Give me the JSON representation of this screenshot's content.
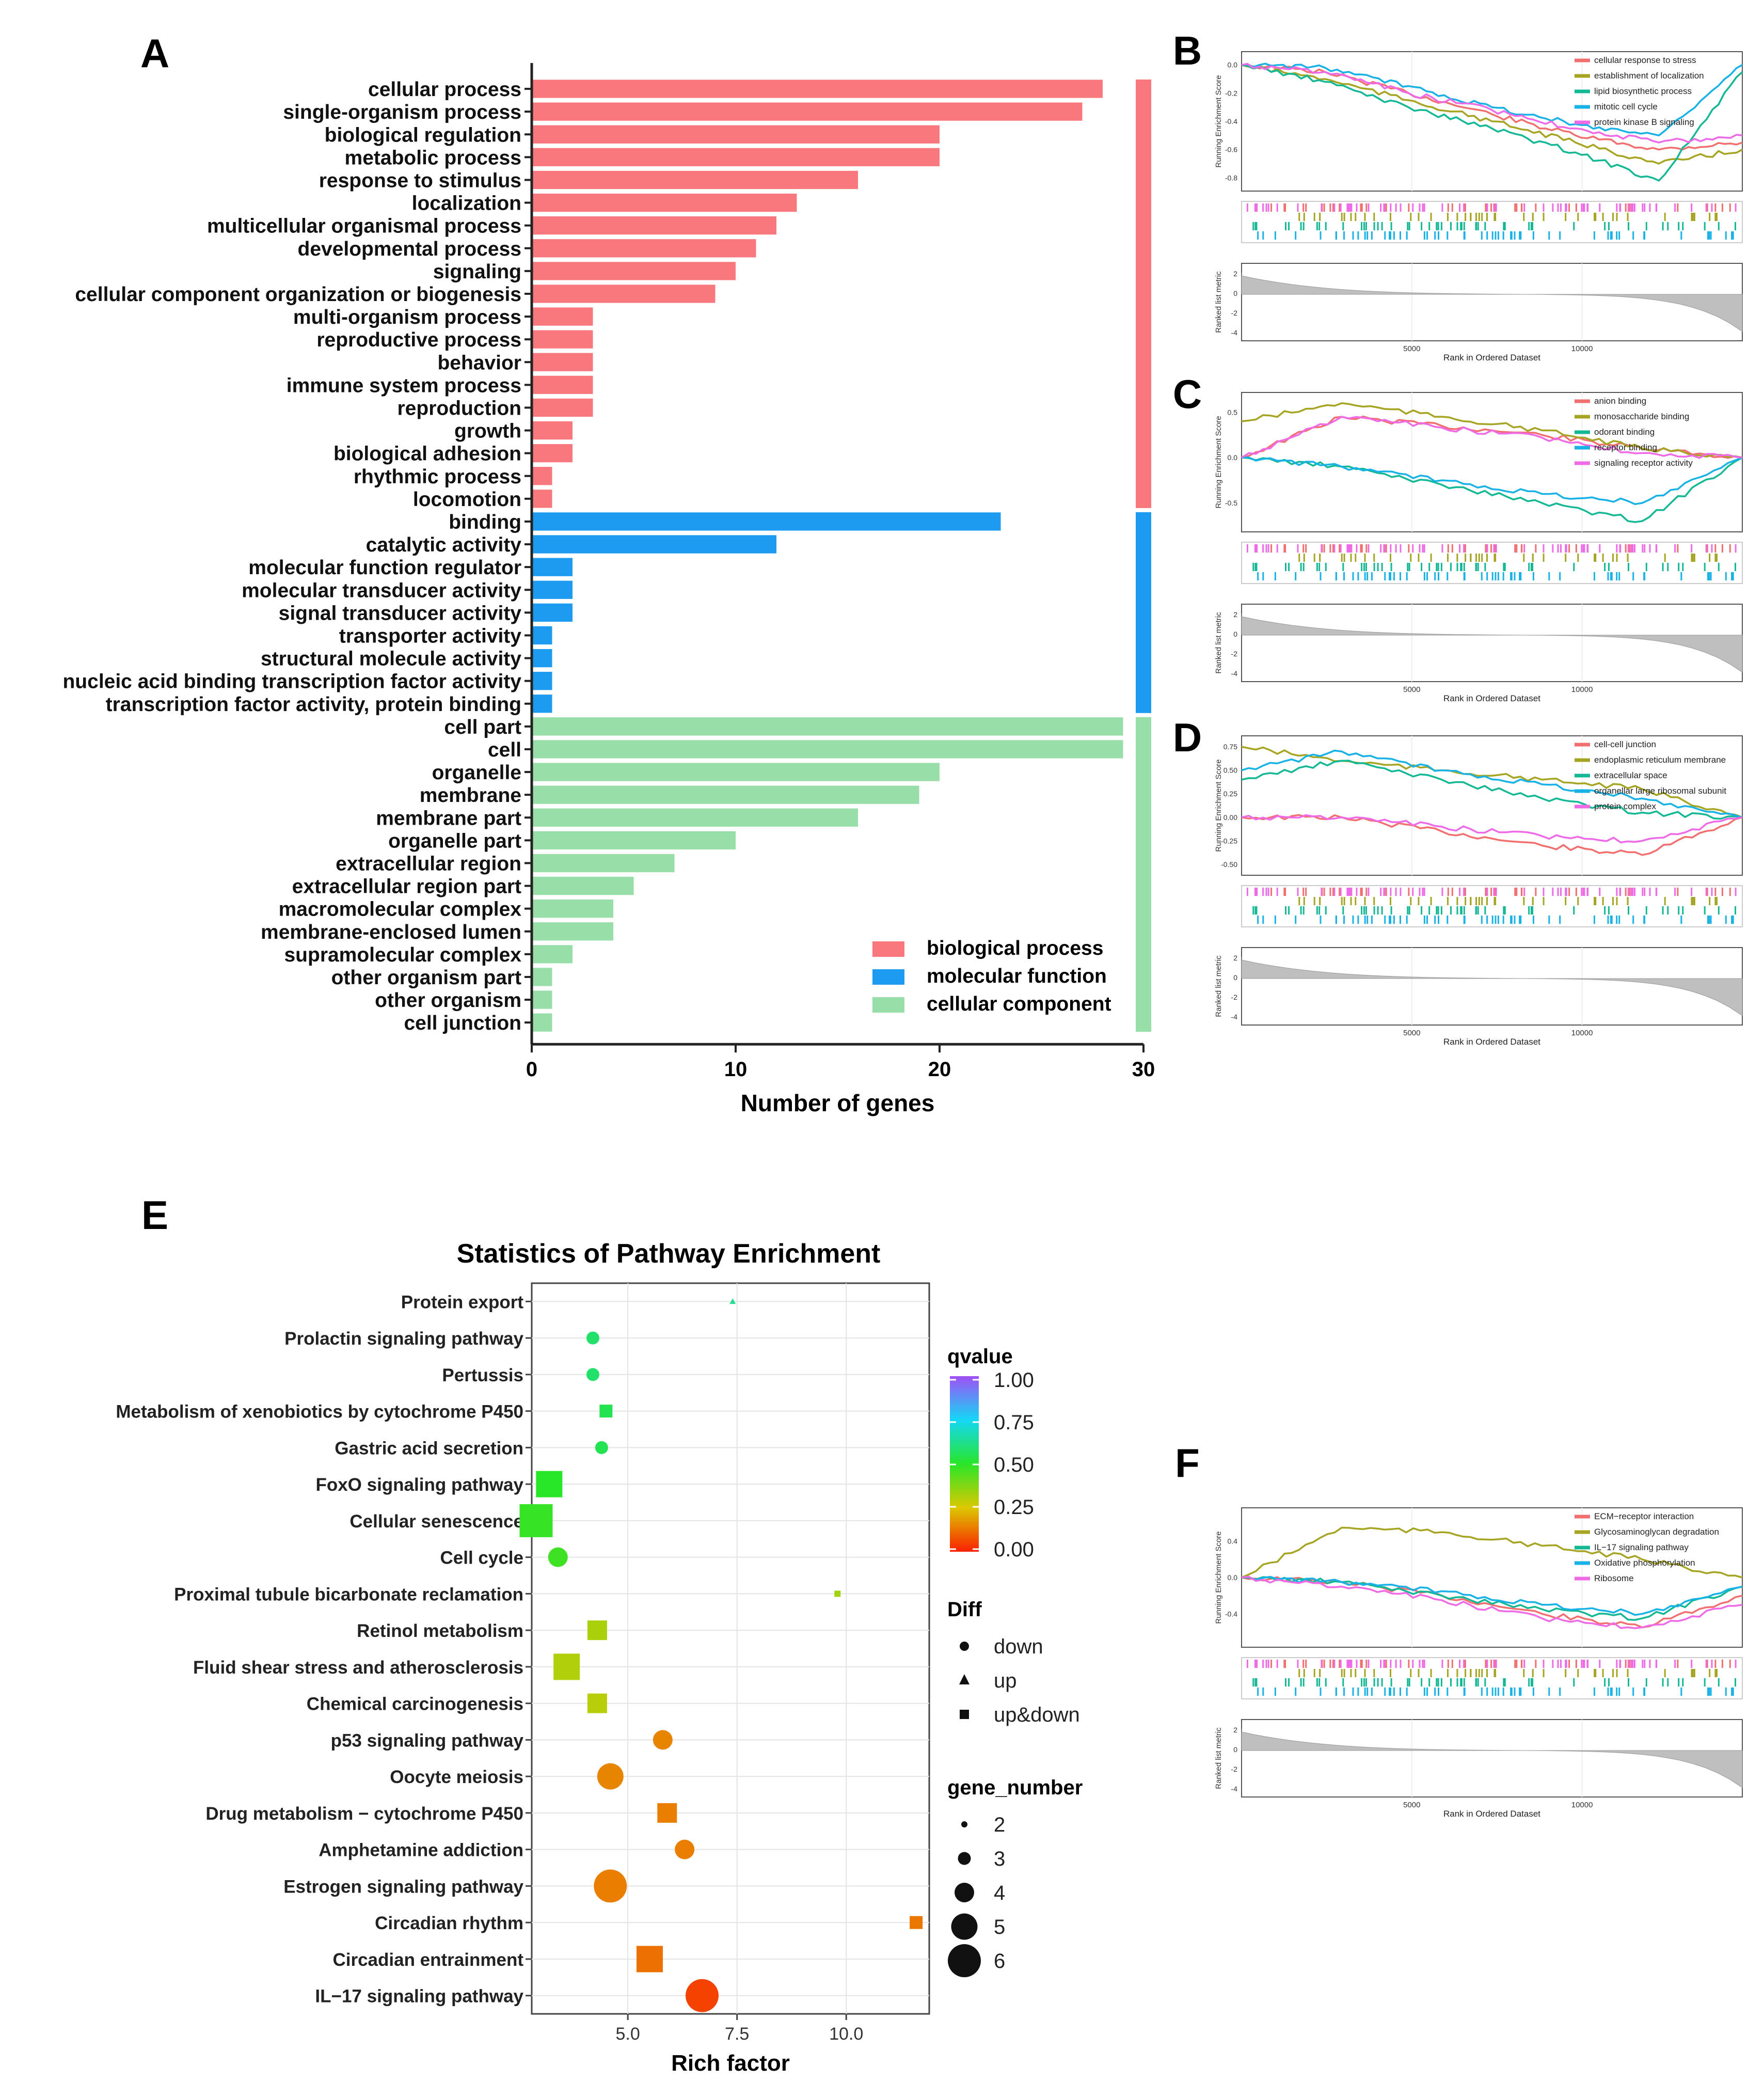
{
  "panels": {
    "A": "A",
    "B": "B",
    "C": "C",
    "D": "D",
    "E": "E",
    "F": "F"
  },
  "colors": {
    "bio": "#F8787E",
    "mol": "#1C9BF0",
    "cell": "#98DEA8",
    "gsea": [
      "#F26F6F",
      "#A6A523",
      "#14B894",
      "#18B2E6",
      "#EE6AE6"
    ]
  },
  "chart_data": [
    {
      "type": "bar",
      "panel": "A",
      "xlabel": "Number of genes",
      "xlim": [
        0,
        30
      ],
      "xticks": [
        0,
        10,
        20,
        30
      ],
      "categories": [
        "cellular process",
        "single-organism process",
        "biological regulation",
        "metabolic process",
        "response to stimulus",
        "localization",
        "multicellular organismal process",
        "developmental process",
        "signaling",
        "cellular component organization or biogenesis",
        "multi-organism process",
        "reproductive process",
        "behavior",
        "immune system process",
        "reproduction",
        "growth",
        "biological adhesion",
        "rhythmic process",
        "locomotion",
        "binding",
        "catalytic activity",
        "molecular function regulator",
        "molecular transducer activity",
        "signal transducer activity",
        "transporter activity",
        "structural molecule activity",
        "nucleic acid binding transcription factor activity",
        "transcription factor activity, protein binding",
        "cell part",
        "cell",
        "organelle",
        "membrane",
        "membrane part",
        "organelle part",
        "extracellular region",
        "extracellular region part",
        "macromolecular complex",
        "membrane-enclosed lumen",
        "supramolecular complex",
        "other organism part",
        "other organism",
        "cell junction"
      ],
      "values": [
        28,
        27,
        20,
        20,
        16,
        13,
        12,
        11,
        10,
        9,
        3,
        3,
        3,
        3,
        3,
        2,
        2,
        1,
        1,
        23,
        12,
        2,
        2,
        2,
        1,
        1,
        1,
        1,
        29,
        29,
        20,
        19,
        16,
        10,
        7,
        5,
        4,
        4,
        2,
        1,
        1,
        1
      ],
      "groups": [
        {
          "name": "biological process",
          "start": 0,
          "end": 18,
          "color_key": "bio"
        },
        {
          "name": "molecular function",
          "start": 19,
          "end": 27,
          "color_key": "mol"
        },
        {
          "name": "cellular component",
          "start": 28,
          "end": 41,
          "color_key": "cell"
        }
      ],
      "legend": [
        "biological process",
        "molecular function",
        "cellular component"
      ]
    },
    {
      "type": "line",
      "panel": "B",
      "ylabel": "Running Enrichment Score",
      "ylabel2": "Ranked list metric",
      "xlabel": "Rank in Ordered Dataset",
      "xticks": [
        "5000",
        "10000"
      ],
      "yticks": [
        "0.0",
        "-0.2",
        "-0.4",
        "-0.6",
        "-0.8"
      ],
      "yticks2": [
        "2",
        "0",
        "-2",
        "-4"
      ],
      "series": [
        {
          "name": "cellular response to stress",
          "values": [
            0,
            -0.05,
            -0.2,
            -0.35,
            -0.5,
            -0.6,
            -0.55
          ]
        },
        {
          "name": "establishment of localization",
          "values": [
            0,
            -0.1,
            -0.25,
            -0.4,
            -0.55,
            -0.7,
            -0.6
          ]
        },
        {
          "name": "lipid biosynthetic process",
          "values": [
            0,
            -0.12,
            -0.3,
            -0.45,
            -0.62,
            -0.82,
            -0.05
          ]
        },
        {
          "name": "mitotic cell cycle",
          "values": [
            0,
            -0.02,
            -0.15,
            -0.3,
            -0.42,
            -0.5,
            0.0
          ]
        },
        {
          "name": "protein kinase B signaling",
          "values": [
            0,
            -0.05,
            -0.2,
            -0.32,
            -0.45,
            -0.55,
            -0.5
          ]
        }
      ]
    },
    {
      "type": "line",
      "panel": "C",
      "ylabel": "Running Enrichment Score",
      "ylabel2": "Ranked list metric",
      "xlabel": "Rank in Ordered Dataset",
      "xticks": [
        "5000",
        "10000"
      ],
      "yticks": [
        "0.5",
        "0.0",
        "-0.5"
      ],
      "yticks2": [
        "2",
        "0",
        "-2",
        "-4"
      ],
      "series": [
        {
          "name": "anion binding",
          "values": [
            0,
            0.45,
            0.35,
            0.25,
            0.1,
            0
          ]
        },
        {
          "name": "monosaccharide binding",
          "values": [
            0.4,
            0.6,
            0.45,
            0.3,
            0.1,
            0
          ]
        },
        {
          "name": "odorant binding",
          "values": [
            0,
            -0.1,
            -0.3,
            -0.5,
            -0.7,
            0
          ]
        },
        {
          "name": "receptor binding",
          "values": [
            0,
            -0.1,
            -0.25,
            -0.4,
            -0.5,
            0
          ]
        },
        {
          "name": "signaling receptor activity",
          "values": [
            0,
            0.45,
            0.33,
            0.22,
            0.05,
            0
          ]
        }
      ]
    },
    {
      "type": "line",
      "panel": "D",
      "ylabel": "Running Enrichment Score",
      "ylabel2": "Ranked list metric",
      "xlabel": "Rank in Ordered Dataset",
      "xticks": [
        "5000",
        "10000"
      ],
      "yticks": [
        "0.75",
        "0.50",
        "0.25",
        "0.00",
        "-0.25",
        "-0.50"
      ],
      "yticks2": [
        "2",
        "0",
        "-2",
        "-4"
      ],
      "series": [
        {
          "name": "cell-cell junction",
          "values": [
            0,
            0,
            -0.15,
            -0.3,
            -0.4,
            0
          ]
        },
        {
          "name": "endoplasmic reticulum membrane",
          "values": [
            0.75,
            0.6,
            0.5,
            0.4,
            0.3,
            0
          ]
        },
        {
          "name": "extracellular space",
          "values": [
            0.4,
            0.6,
            0.4,
            0.2,
            0.05,
            0
          ]
        },
        {
          "name": "organellar large ribosomal subunit",
          "values": [
            0.5,
            0.7,
            0.5,
            0.35,
            0.2,
            0
          ]
        },
        {
          "name": "protein complex",
          "values": [
            0,
            0,
            -0.1,
            -0.2,
            -0.25,
            0
          ]
        }
      ]
    },
    {
      "type": "scatter",
      "panel": "E",
      "title": "Statistics of Pathway Enrichment",
      "xlabel": "Rich factor",
      "xlim": [
        2.8,
        11.9
      ],
      "xticks": [
        "5.0",
        "7.5",
        "10.0"
      ],
      "categories": [
        "Protein export",
        "Prolactin signaling pathway",
        "Pertussis",
        "Metabolism of xenobiotics by cytochrome P450",
        "Gastric acid secretion",
        "FoxO signaling pathway",
        "Cellular senescence",
        "Cell cycle",
        "Proximal tubule bicarbonate reclamation",
        "Retinol metabolism",
        "Fluid shear stress and atherosclerosis",
        "Chemical carcinogenesis",
        "p53 signaling pathway",
        "Oocyte meiosis",
        "Drug metabolism − cytochrome P450",
        "Amphetamine addiction",
        "Estrogen signaling pathway",
        "Circadian rhythm",
        "Circadian entrainment",
        "IL−17 signaling pathway"
      ],
      "points": [
        {
          "x": 7.4,
          "q": 0.62,
          "diff": "up",
          "n": 2
        },
        {
          "x": 4.2,
          "q": 0.58,
          "diff": "down",
          "n": 3
        },
        {
          "x": 4.2,
          "q": 0.58,
          "diff": "down",
          "n": 3
        },
        {
          "x": 4.5,
          "q": 0.55,
          "diff": "up&down",
          "n": 3
        },
        {
          "x": 4.4,
          "q": 0.55,
          "diff": "down",
          "n": 3
        },
        {
          "x": 3.2,
          "q": 0.5,
          "diff": "up&down",
          "n": 5
        },
        {
          "x": 2.9,
          "q": 0.48,
          "diff": "up&down",
          "n": 6
        },
        {
          "x": 3.4,
          "q": 0.47,
          "diff": "down",
          "n": 4
        },
        {
          "x": 9.8,
          "q": 0.33,
          "diff": "up&down",
          "n": 2
        },
        {
          "x": 4.3,
          "q": 0.32,
          "diff": "up&down",
          "n": 4
        },
        {
          "x": 3.6,
          "q": 0.31,
          "diff": "up&down",
          "n": 5
        },
        {
          "x": 4.3,
          "q": 0.3,
          "diff": "up&down",
          "n": 4
        },
        {
          "x": 5.8,
          "q": 0.15,
          "diff": "down",
          "n": 4
        },
        {
          "x": 4.6,
          "q": 0.15,
          "diff": "down",
          "n": 5
        },
        {
          "x": 5.9,
          "q": 0.14,
          "diff": "up&down",
          "n": 4
        },
        {
          "x": 6.3,
          "q": 0.14,
          "diff": "down",
          "n": 4
        },
        {
          "x": 4.6,
          "q": 0.14,
          "diff": "down",
          "n": 6
        },
        {
          "x": 11.6,
          "q": 0.13,
          "diff": "up&down",
          "n": 3
        },
        {
          "x": 5.5,
          "q": 0.12,
          "diff": "up&down",
          "n": 5
        },
        {
          "x": 6.7,
          "q": 0.05,
          "diff": "down",
          "n": 6
        }
      ],
      "legend_q_title": "qvalue",
      "legend_q_ticks": [
        "1.00",
        "0.75",
        "0.50",
        "0.25",
        "0.00"
      ],
      "legend_diff_title": "Diff",
      "legend_diff": [
        "down",
        "up",
        "up&down"
      ],
      "legend_n_title": "gene_number",
      "legend_n": [
        "2",
        "3",
        "4",
        "5",
        "6"
      ]
    },
    {
      "type": "line",
      "panel": "F",
      "ylabel": "Running Enrichment Score",
      "ylabel2": "Ranked list metric",
      "xlabel": "Rank in Ordered Dataset",
      "xticks": [
        "5000",
        "10000"
      ],
      "yticks": [
        "0.4",
        "0.0",
        "-0.4"
      ],
      "yticks2": [
        "2",
        "0",
        "-2",
        "-4"
      ],
      "series": [
        {
          "name": "ECM−receptor interaction",
          "values": [
            0,
            -0.05,
            -0.2,
            -0.4,
            -0.55,
            -0.2
          ]
        },
        {
          "name": "Glycosaminoglycan degradation",
          "values": [
            0,
            0.55,
            0.5,
            0.35,
            0.2,
            0
          ]
        },
        {
          "name": "IL−17 signaling pathway",
          "values": [
            0,
            -0.05,
            -0.2,
            -0.35,
            -0.45,
            -0.1
          ]
        },
        {
          "name": "Oxidative phosphorylation",
          "values": [
            0,
            -0.05,
            -0.15,
            -0.3,
            -0.4,
            -0.1
          ]
        },
        {
          "name": "Ribosome",
          "values": [
            0,
            -0.1,
            -0.25,
            -0.45,
            -0.55,
            -0.3
          ]
        }
      ]
    }
  ]
}
